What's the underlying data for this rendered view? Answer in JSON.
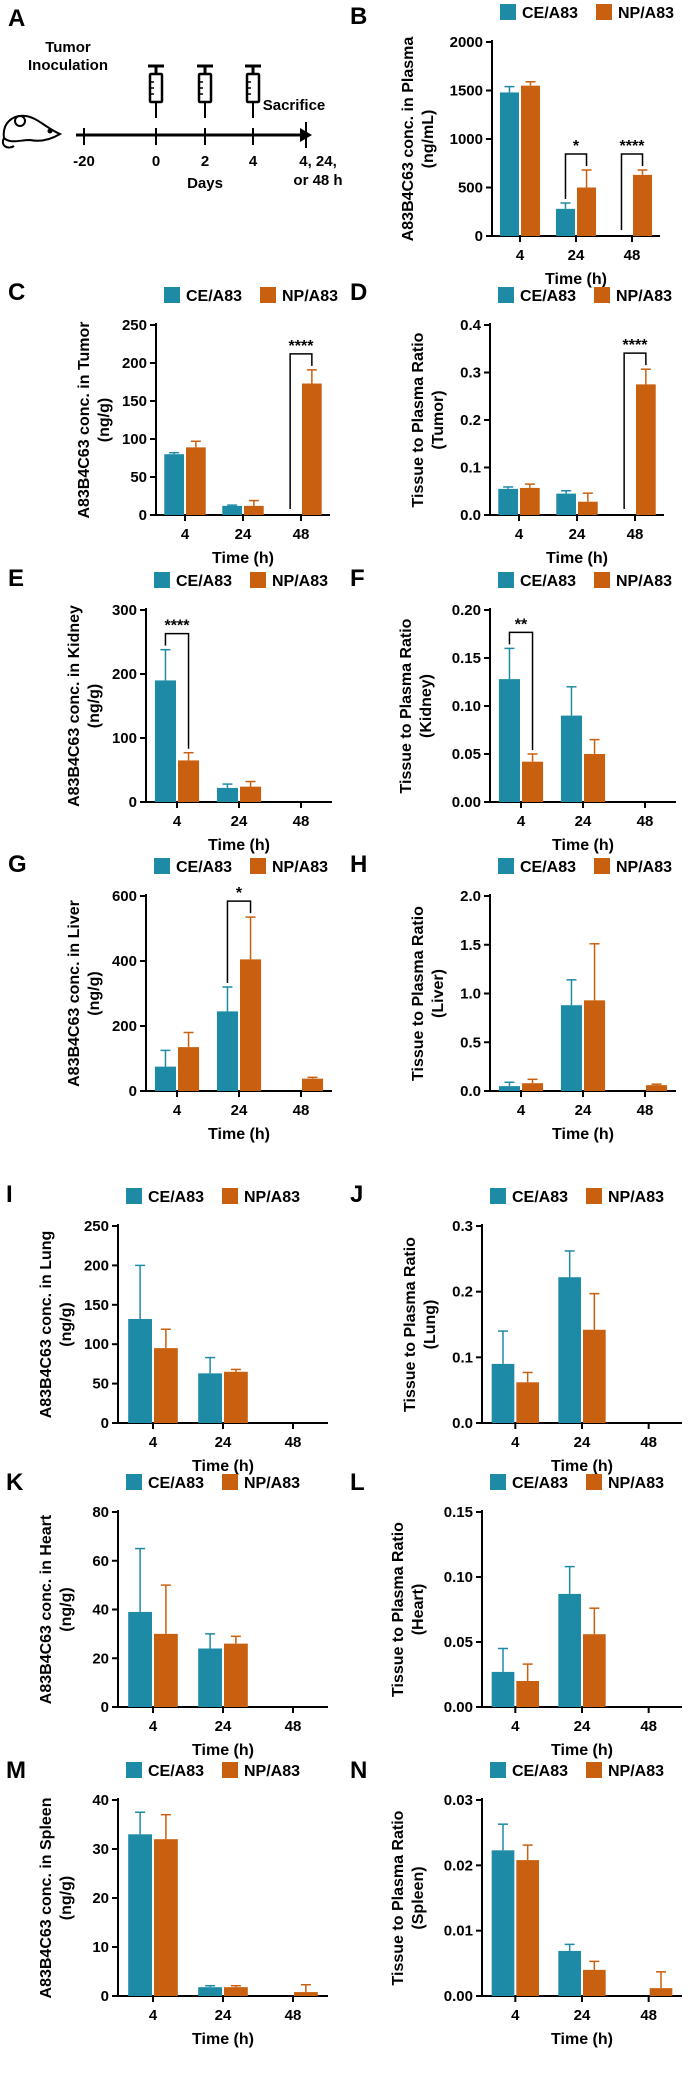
{
  "legend": [
    "CE/A83",
    "NP/A83"
  ],
  "colors": {
    "CE/A83": "#1e8ba6",
    "NP/A83": "#c8600f",
    "axis": "#000000"
  },
  "schematic": {
    "panel_label": "A",
    "tumor_label_line1": "Tumor",
    "tumor_label_line2": "Inoculation",
    "sacrifice_label": "Sacrifice",
    "ticks": [
      "-20",
      "0",
      "2",
      "4"
    ],
    "days_label": "Days",
    "end_label_line1": "4, 24,",
    "end_label_line2": "or 48 h",
    "injection_days": [
      "0",
      "2",
      "4"
    ]
  },
  "chart_data": [
    {
      "id": "B",
      "panel_label": "B",
      "type": "bar",
      "xlabel": "Time (h)",
      "ylabel": [
        "A83B4C63 conc. in Plasma",
        "(ng/mL)"
      ],
      "categories": [
        "4",
        "24",
        "48"
      ],
      "ylim": [
        0,
        2000
      ],
      "yticks": [
        "0",
        "500",
        "1000",
        "1500",
        "2000"
      ],
      "series": [
        {
          "name": "CE/A83",
          "values": [
            1480,
            280,
            0
          ],
          "errors": [
            60,
            60,
            0
          ]
        },
        {
          "name": "NP/A83",
          "values": [
            1550,
            500,
            630
          ],
          "errors": [
            40,
            180,
            50
          ]
        }
      ],
      "significance": [
        {
          "category": "24",
          "label": "*"
        },
        {
          "category": "48",
          "label": "****"
        }
      ]
    },
    {
      "id": "C",
      "panel_label": "C",
      "type": "bar",
      "xlabel": "Time (h)",
      "ylabel": [
        "A83B4C63 conc. in Tumor",
        "(ng/g)"
      ],
      "categories": [
        "4",
        "24",
        "48"
      ],
      "ylim": [
        0,
        250
      ],
      "yticks": [
        "0",
        "50",
        "100",
        "150",
        "200",
        "250"
      ],
      "series": [
        {
          "name": "CE/A83",
          "values": [
            80,
            12,
            0
          ],
          "errors": [
            2,
            1,
            0
          ]
        },
        {
          "name": "NP/A83",
          "values": [
            89,
            12,
            173
          ],
          "errors": [
            8,
            7,
            18
          ]
        }
      ],
      "significance": [
        {
          "category": "48",
          "label": "****"
        }
      ]
    },
    {
      "id": "D",
      "panel_label": "D",
      "type": "bar",
      "xlabel": "Time (h)",
      "ylabel": [
        "Tissue to Plasma Ratio",
        "(Tumor)"
      ],
      "categories": [
        "4",
        "24",
        "48"
      ],
      "ylim": [
        0,
        0.4
      ],
      "yticks": [
        "0.0",
        "0.1",
        "0.2",
        "0.3",
        "0.4"
      ],
      "series": [
        {
          "name": "CE/A83",
          "values": [
            0.055,
            0.045,
            0
          ],
          "errors": [
            0.004,
            0.006,
            0
          ]
        },
        {
          "name": "NP/A83",
          "values": [
            0.057,
            0.028,
            0.275
          ],
          "errors": [
            0.008,
            0.018,
            0.032
          ]
        }
      ],
      "significance": [
        {
          "category": "48",
          "label": "****"
        }
      ]
    },
    {
      "id": "E",
      "panel_label": "E",
      "type": "bar",
      "xlabel": "Time (h)",
      "ylabel": [
        "A83B4C63 conc. in Kidney",
        "(ng/g)"
      ],
      "categories": [
        "4",
        "24",
        "48"
      ],
      "ylim": [
        0,
        300
      ],
      "yticks": [
        "0",
        "100",
        "200",
        "300"
      ],
      "series": [
        {
          "name": "CE/A83",
          "values": [
            190,
            22,
            0
          ],
          "errors": [
            48,
            6,
            0
          ]
        },
        {
          "name": "NP/A83",
          "values": [
            65,
            24,
            0
          ],
          "errors": [
            12,
            8,
            0
          ]
        }
      ],
      "significance": [
        {
          "category": "4",
          "label": "****"
        }
      ]
    },
    {
      "id": "F",
      "panel_label": "F",
      "type": "bar",
      "xlabel": "Time (h)",
      "ylabel": [
        "Tissue to Plasma Ratio",
        "(Kidney)"
      ],
      "categories": [
        "4",
        "24",
        "48"
      ],
      "ylim": [
        0,
        0.2
      ],
      "yticks": [
        "0.00",
        "0.05",
        "0.10",
        "0.15",
        "0.20"
      ],
      "series": [
        {
          "name": "CE/A83",
          "values": [
            0.128,
            0.09,
            0
          ],
          "errors": [
            0.032,
            0.03,
            0
          ]
        },
        {
          "name": "NP/A83",
          "values": [
            0.042,
            0.05,
            0
          ],
          "errors": [
            0.008,
            0.015,
            0
          ]
        }
      ],
      "significance": [
        {
          "category": "4",
          "label": "**"
        }
      ]
    },
    {
      "id": "G",
      "panel_label": "G",
      "type": "bar",
      "xlabel": "Time (h)",
      "ylabel": [
        "A83B4C63 conc. in Liver",
        "(ng/g)"
      ],
      "categories": [
        "4",
        "24",
        "48"
      ],
      "ylim": [
        0,
        600
      ],
      "yticks": [
        "0",
        "200",
        "400",
        "600"
      ],
      "series": [
        {
          "name": "CE/A83",
          "values": [
            75,
            245,
            0
          ],
          "errors": [
            50,
            75,
            0
          ]
        },
        {
          "name": "NP/A83",
          "values": [
            135,
            405,
            38
          ],
          "errors": [
            45,
            130,
            4
          ]
        }
      ],
      "significance": [
        {
          "category": "24",
          "label": "*"
        }
      ]
    },
    {
      "id": "H",
      "panel_label": "H",
      "type": "bar",
      "xlabel": "Time (h)",
      "ylabel": [
        "Tissue to Plasma Ratio",
        "(Liver)"
      ],
      "categories": [
        "4",
        "24",
        "48"
      ],
      "ylim": [
        0,
        2.0
      ],
      "yticks": [
        "0.0",
        "0.5",
        "1.0",
        "1.5",
        "2.0"
      ],
      "series": [
        {
          "name": "CE/A83",
          "values": [
            0.05,
            0.88,
            0
          ],
          "errors": [
            0.04,
            0.26,
            0
          ]
        },
        {
          "name": "NP/A83",
          "values": [
            0.08,
            0.93,
            0.06
          ],
          "errors": [
            0.04,
            0.58,
            0.01
          ]
        }
      ],
      "significance": []
    },
    {
      "id": "I",
      "panel_label": "I",
      "type": "bar",
      "xlabel": "Time (h)",
      "ylabel": [
        "A83B4C63 conc. in Lung",
        "(ng/g)"
      ],
      "categories": [
        "4",
        "24",
        "48"
      ],
      "ylim": [
        0,
        250
      ],
      "yticks": [
        "0",
        "50",
        "100",
        "150",
        "200",
        "250"
      ],
      "series": [
        {
          "name": "CE/A83",
          "values": [
            132,
            63,
            0
          ],
          "errors": [
            68,
            20,
            0
          ]
        },
        {
          "name": "NP/A83",
          "values": [
            95,
            65,
            0
          ],
          "errors": [
            24,
            3,
            0
          ]
        }
      ],
      "significance": []
    },
    {
      "id": "J",
      "panel_label": "J",
      "type": "bar",
      "xlabel": "Time (h)",
      "ylabel": [
        "Tissue to Plasma Ratio",
        "(Lung)"
      ],
      "categories": [
        "4",
        "24",
        "48"
      ],
      "ylim": [
        0,
        0.3
      ],
      "yticks": [
        "0.0",
        "0.1",
        "0.2",
        "0.3"
      ],
      "series": [
        {
          "name": "CE/A83",
          "values": [
            0.09,
            0.222,
            0
          ],
          "errors": [
            0.05,
            0.04,
            0
          ]
        },
        {
          "name": "NP/A83",
          "values": [
            0.062,
            0.142,
            0
          ],
          "errors": [
            0.015,
            0.055,
            0
          ]
        }
      ],
      "significance": []
    },
    {
      "id": "K",
      "panel_label": "K",
      "type": "bar",
      "xlabel": "Time (h)",
      "ylabel": [
        "A83B4C63 conc. in Heart",
        "(ng/g)"
      ],
      "categories": [
        "4",
        "24",
        "48"
      ],
      "ylim": [
        0,
        80
      ],
      "yticks": [
        "0",
        "20",
        "40",
        "60",
        "80"
      ],
      "series": [
        {
          "name": "CE/A83",
          "values": [
            39,
            24,
            0
          ],
          "errors": [
            26,
            6,
            0
          ]
        },
        {
          "name": "NP/A83",
          "values": [
            30,
            26,
            0
          ],
          "errors": [
            20,
            3,
            0
          ]
        }
      ],
      "significance": []
    },
    {
      "id": "L",
      "panel_label": "L",
      "type": "bar",
      "xlabel": "Time (h)",
      "ylabel": [
        "Tissue to Plasma Ratio",
        "(Heart)"
      ],
      "categories": [
        "4",
        "24",
        "48"
      ],
      "ylim": [
        0,
        0.15
      ],
      "yticks": [
        "0.00",
        "0.05",
        "0.10",
        "0.15"
      ],
      "series": [
        {
          "name": "CE/A83",
          "values": [
            0.027,
            0.087,
            0
          ],
          "errors": [
            0.018,
            0.021,
            0
          ]
        },
        {
          "name": "NP/A83",
          "values": [
            0.02,
            0.056,
            0
          ],
          "errors": [
            0.013,
            0.02,
            0
          ]
        }
      ],
      "significance": []
    },
    {
      "id": "M",
      "panel_label": "M",
      "type": "bar",
      "xlabel": "Time (h)",
      "ylabel": [
        "A83B4C63 conc. in Spleen",
        "(ng/g)"
      ],
      "categories": [
        "4",
        "24",
        "48"
      ],
      "ylim": [
        0,
        40
      ],
      "yticks": [
        "0",
        "10",
        "20",
        "30",
        "40"
      ],
      "series": [
        {
          "name": "CE/A83",
          "values": [
            33,
            1.8,
            0
          ],
          "errors": [
            4.5,
            0.3,
            0
          ]
        },
        {
          "name": "NP/A83",
          "values": [
            32,
            1.8,
            0.8
          ],
          "errors": [
            5,
            0.3,
            1.5
          ]
        }
      ],
      "significance": []
    },
    {
      "id": "N",
      "panel_label": "N",
      "type": "bar",
      "xlabel": "Time (h)",
      "ylabel": [
        "Tissue to Plasma Ratio",
        "(Spleen)"
      ],
      "categories": [
        "4",
        "24",
        "48"
      ],
      "ylim": [
        0,
        0.03
      ],
      "yticks": [
        "0.00",
        "0.01",
        "0.02",
        "0.03"
      ],
      "series": [
        {
          "name": "CE/A83",
          "values": [
            0.0223,
            0.0069,
            0
          ],
          "errors": [
            0.004,
            0.001,
            0
          ]
        },
        {
          "name": "NP/A83",
          "values": [
            0.0208,
            0.004,
            0.0012
          ],
          "errors": [
            0.0023,
            0.0013,
            0.0025
          ]
        }
      ],
      "significance": []
    }
  ]
}
